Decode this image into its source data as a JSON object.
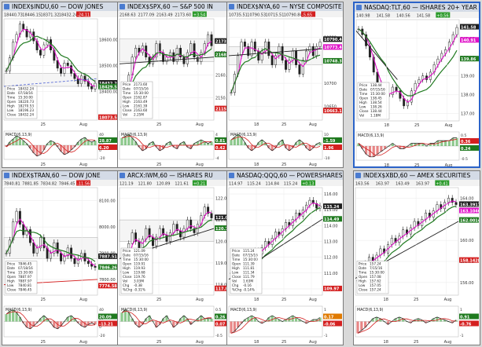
{
  "panels": [
    {
      "title": "INDEX$INDU,60 — DOW JONES",
      "readout": [
        "18440.73",
        "18446.15",
        "18371.32",
        "18432.24",
        "-24.11"
      ],
      "price_ticks": [
        "18600.00",
        "18500.00",
        "18400.00"
      ],
      "price_labels": [
        {
          "text": "18432.24",
          "color": "#1d1d1d",
          "y": 18432
        },
        {
          "text": "18429.51",
          "color": "#1f7a1f",
          "y": 18418
        },
        {
          "text": "18073.54",
          "color": "#d42020",
          "y": 18300
        }
      ],
      "ylim": [
        18290,
        18680
      ],
      "time_ticks": [
        "25",
        "Aug"
      ],
      "info_lines": [
        "Price",
        "Date",
        "Time",
        "Open",
        "High",
        "Low",
        "Close"
      ],
      "info_values": [
        "18432.24",
        "07/18/16",
        "15:30:00",
        "18220.73",
        "18270.53",
        "18196.23",
        "18432.24"
      ],
      "macd_label": "MACD(6,13,9)",
      "macd_ticks": [
        "40",
        "20",
        "0",
        "-20"
      ],
      "macd_values": [
        {
          "text": "28.87",
          "color": "#1f7a1f"
        },
        {
          "text": "6.20",
          "color": "#d42020"
        }
      ],
      "closes": [
        18480,
        18530,
        18590,
        18620,
        18660,
        18640,
        18610,
        18630,
        18595,
        18560,
        18540,
        18580,
        18600,
        18560,
        18520,
        18490,
        18470,
        18510,
        18500,
        18470,
        18450,
        18430,
        18460,
        18440,
        18420,
        18410,
        18432
      ],
      "bands": [
        {
          "a": 18420,
          "b": 18470
        }
      ],
      "trend": {
        "x0": 0.0,
        "y0": 18420,
        "x1": 1.0,
        "y1": 18450,
        "color": "#ffffff"
      },
      "macd": [
        -2,
        4,
        8,
        12,
        10,
        6,
        2,
        -4,
        -10,
        -14,
        -12,
        -6,
        2,
        6,
        4,
        -2,
        -8,
        -12,
        -10,
        -6,
        -2,
        4,
        8,
        10,
        6,
        4,
        6
      ]
    },
    {
      "title": "INDEX$SPX,60 — S&P 500 IN",
      "readout": [
        "2168.63",
        "2177.09",
        "2163.49",
        "2173.60",
        "+3.54"
      ],
      "price_ticks": [
        "2170.00",
        "2160.00",
        "2150.00"
      ],
      "price_labels": [
        {
          "text": "2173.44",
          "color": "#1d1d1d",
          "y": 2175
        },
        {
          "text": "2168.67",
          "color": "#1f7a1f",
          "y": 2169
        },
        {
          "text": "2115.67",
          "color": "#d42020",
          "y": 2145
        }
      ],
      "ylim": [
        2140,
        2185
      ],
      "time_ticks": [
        "25",
        "Aug"
      ],
      "info_lines": [
        "Price",
        "Date",
        "Time",
        "Open",
        "High",
        "Low",
        "Close",
        "Vol"
      ],
      "info_values": [
        "2173.60",
        "07/15/16",
        "15:30:00",
        "2162.87",
        "2163.49",
        "2161.39",
        "2163.60",
        "2.25M"
      ],
      "macd_label": "MACD(6,13,9)",
      "macd_ticks": [
        "4",
        "0",
        "-4"
      ],
      "macd_values": [
        {
          "text": "0.81",
          "color": "#1f7a1f"
        },
        {
          "text": "0.42",
          "color": "#d42020"
        }
      ],
      "closes": [
        2146,
        2152,
        2160,
        2168,
        2172,
        2170,
        2173,
        2168,
        2165,
        2168,
        2174,
        2170,
        2166,
        2168,
        2170,
        2166,
        2172,
        2168,
        2165,
        2170,
        2174,
        2168,
        2166,
        2170,
        2174,
        2178,
        2173
      ],
      "bands": [
        {
          "a": 2166,
          "b": 2176
        }
      ],
      "trend": {
        "x0": 0.0,
        "y0": 2165,
        "x1": 1.0,
        "y1": 2168,
        "color": "#1d1d1d"
      },
      "macd": [
        4,
        5,
        6,
        4,
        2,
        -1,
        -3,
        -2,
        1,
        2,
        -1,
        -3,
        -2,
        1,
        2,
        -1,
        -2,
        1,
        2,
        -1,
        -2,
        1,
        2,
        3,
        2,
        1,
        2
      ]
    },
    {
      "title": "INDEX$NYA,60 — NYSE COMPOSITE IN",
      "readout": [
        "10735.51",
        "10790.53",
        "10715.51",
        "10790.84",
        "-5.65"
      ],
      "price_ticks": [
        "10800",
        "10750",
        "10700",
        "10650"
      ],
      "price_labels": [
        {
          "text": "10790.408",
          "color": "#1d1d1d",
          "y": 10795
        },
        {
          "text": "10773.459",
          "color": "#e011c8",
          "y": 10778
        },
        {
          "text": "10748.324",
          "color": "#1f7a1f",
          "y": 10748
        },
        {
          "text": "10663.170",
          "color": "#d42020",
          "y": 10640
        }
      ],
      "ylim": [
        10620,
        10840
      ],
      "time_ticks": [
        "18",
        "25",
        "Aug"
      ],
      "info_lines": [],
      "info_values": [],
      "macd_label": "MACD(6,13,9)",
      "macd_ticks": [
        "10",
        "0",
        "-10"
      ],
      "macd_values": [
        {
          "text": "-1.59",
          "color": "#1f7a1f"
        },
        {
          "text": "1.96",
          "color": "#d42020"
        }
      ],
      "closes": [
        10680,
        10720,
        10760,
        10790,
        10780,
        10760,
        10790,
        10770,
        10750,
        10770,
        10790,
        10760,
        10740,
        10760,
        10780,
        10750,
        10730,
        10750,
        10770,
        10740,
        10720,
        10750,
        10770,
        10780,
        10760,
        10780,
        10790
      ],
      "bands": [
        {
          "a": 10740,
          "b": 10780
        }
      ],
      "trend": {
        "x0": 0.0,
        "y0": 10760,
        "x1": 1.0,
        "y1": 10775,
        "color": "#1d1d1d"
      },
      "macd": [
        4,
        6,
        8,
        6,
        2,
        -2,
        -4,
        -2,
        2,
        4,
        2,
        -2,
        -4,
        -2,
        2,
        4,
        -2,
        -4,
        -2,
        2,
        4,
        2,
        -2,
        -4,
        -2,
        1,
        2
      ]
    },
    {
      "title": "NASDAQ:TLT,60 — ISHARES 20+ YEAR",
      "readout": [
        "140.98",
        "141.58",
        "140.56",
        "141.58",
        "+0.56"
      ],
      "price_ticks": [
        "141.00",
        "140.00",
        "139.00",
        "138.00",
        "137.00"
      ],
      "price_labels": [
        {
          "text": "141.58",
          "color": "#1d1d1d",
          "y": 141.6
        },
        {
          "text": "140.91",
          "color": "#e011c8",
          "y": 140.9
        },
        {
          "text": "139.86",
          "color": "#1f7a1f",
          "y": 139.9
        }
      ],
      "ylim": [
        136.6,
        142.0
      ],
      "time_ticks": [
        "18",
        "25",
        "Aug"
      ],
      "info_lines": [
        "Price",
        "Date",
        "Time",
        "Open",
        "High",
        "Low",
        "Close",
        "Vol"
      ],
      "info_values": [
        "138.44",
        "07/15/16",
        "15:30:00",
        "138.45",
        "138.54",
        "138.26",
        "138.44",
        "1.18M"
      ],
      "macd_label": "MACD(6,13,9)",
      "macd_ticks": [
        "0.5",
        "0.0",
        "-0.5"
      ],
      "macd_values": [
        {
          "text": "0.36",
          "color": "#d42020"
        },
        {
          "text": "0.24",
          "color": "#1f7a1f"
        }
      ],
      "closes": [
        141.5,
        141.2,
        140.6,
        140.0,
        139.2,
        138.6,
        138.2,
        137.9,
        138.0,
        138.4,
        138.2,
        137.8,
        137.4,
        137.6,
        138.2,
        138.6,
        138.8,
        139.0,
        138.8,
        139.2,
        139.6,
        139.9,
        140.2,
        140.4,
        140.8,
        141.2,
        141.58
      ],
      "bands": [],
      "trend": {
        "x0": 0.0,
        "y0": 141.4,
        "x1": 0.4,
        "y1": 138.8,
        "color": "#1d1d1d"
      },
      "macd": [
        0.1,
        -0.1,
        -0.3,
        -0.4,
        -0.4,
        -0.3,
        -0.2,
        -0.1,
        0.0,
        0.1,
        0.0,
        -0.1,
        -0.1,
        0.0,
        0.1,
        0.1,
        0.1,
        0.1,
        0.0,
        0.1,
        0.1,
        0.2,
        0.2,
        0.2,
        0.2,
        0.3,
        0.3
      ]
    },
    {
      "title": "INDEX$TRAN,60 — DOW JONE",
      "readout": [
        "7840.81",
        "7881.85",
        "7834.82",
        "7846.45",
        "-11.56"
      ],
      "price_ticks": [
        "8100.00",
        "8000.00",
        "7900.00",
        "7800.00"
      ],
      "price_labels": [
        {
          "text": "7887.51",
          "color": "#1d1d1d",
          "y": 7887
        },
        {
          "text": "7846.26",
          "color": "#1f7a1f",
          "y": 7846
        },
        {
          "text": "7774.58",
          "color": "#d42020",
          "y": 7775
        }
      ],
      "ylim": [
        7740,
        8150
      ],
      "time_ticks": [
        "25",
        "Aug"
      ],
      "info_lines": [
        "Price",
        "Date",
        "Time",
        "Open",
        "High",
        "Low",
        "Close"
      ],
      "info_values": [
        "7846.45",
        "07/18/16",
        "15:30:00",
        "7887.97",
        "7887.97",
        "7840.81",
        "7846.45"
      ],
      "macd_label": "MACD(6,13,9)",
      "macd_ticks": [
        "40",
        "20",
        "0",
        "-20"
      ],
      "macd_values": [
        {
          "text": "20.09",
          "color": "#1f7a1f"
        },
        {
          "text": "-13.21",
          "color": "#d42020"
        }
      ],
      "closes": [
        7900,
        7950,
        8020,
        8060,
        8010,
        7970,
        7990,
        7940,
        7900,
        7920,
        7960,
        7920,
        7880,
        7900,
        7940,
        7900,
        7870,
        7890,
        7920,
        7880,
        7860,
        7880,
        7900,
        7870,
        7860,
        7850,
        7846
      ],
      "bands": [
        {
          "a": 7880,
          "b": 7960
        }
      ],
      "trend": {
        "x0": 0.0,
        "y0": 7780,
        "x1": 1.0,
        "y1": 7800,
        "color": "#d42020"
      },
      "macd": [
        10,
        14,
        16,
        12,
        6,
        -2,
        -8,
        -10,
        -6,
        -2,
        4,
        8,
        4,
        -2,
        -8,
        -10,
        -6,
        0,
        6,
        8,
        4,
        -2,
        -6,
        -8,
        -4,
        -2,
        -4
      ]
    },
    {
      "title": "ARCX:IWM,60 — ISHARES RU",
      "readout": [
        "121.19",
        "121.80",
        "120.89",
        "121.61",
        "+0.21"
      ],
      "price_ticks": [
        "122.00",
        "121.00",
        "120.00",
        "119.00",
        "118.00"
      ],
      "price_labels": [
        {
          "text": "121.09",
          "color": "#1d1d1d",
          "y": 121.1
        },
        {
          "text": "120.74",
          "color": "#1f7a1f",
          "y": 120.6
        },
        {
          "text": "117.85",
          "color": "#d42020",
          "y": 117.8
        }
      ],
      "ylim": [
        117.5,
        122.5
      ],
      "time_ticks": [
        "25",
        "Aug"
      ],
      "info_lines": [
        "Price",
        "Date",
        "Time",
        "Open",
        "High",
        "Low",
        "Close",
        "Vol",
        "Chg",
        "%Chg"
      ],
      "info_values": [
        "121.09",
        "07/15/16",
        "15:30:00",
        "119.91",
        "119.93",
        "119.68",
        "119.76",
        "3.03M",
        "-0.38",
        "-0.31%"
      ],
      "macd_label": "MACD(6,13,9)",
      "macd_ticks": [
        "0.5",
        "0.0",
        "-0.5"
      ],
      "macd_values": [
        {
          "text": "0.26",
          "color": "#1f7a1f"
        },
        {
          "text": "0.07",
          "color": "#d42020"
        }
      ],
      "closes": [
        118.6,
        119.2,
        119.9,
        120.4,
        120.0,
        119.6,
        120.1,
        120.6,
        120.2,
        119.8,
        120.2,
        120.6,
        120.3,
        120.0,
        120.4,
        120.8,
        120.5,
        120.2,
        120.6,
        121.0,
        120.6,
        120.4,
        120.8,
        121.2,
        121.6,
        121.3,
        121.09
      ],
      "bands": [
        {
          "a": 120.0,
          "b": 121.0
        }
      ],
      "trend": {
        "x0": 0.0,
        "y0": 119.2,
        "x1": 1.0,
        "y1": 120.6,
        "color": "#1d1d1d"
      },
      "macd": [
        0.3,
        0.4,
        0.3,
        0.1,
        -0.1,
        -0.2,
        -0.1,
        0.1,
        0.2,
        0.0,
        -0.2,
        -0.1,
        0.1,
        0.2,
        0.0,
        -0.2,
        -0.1,
        0.1,
        0.2,
        0.1,
        -0.1,
        0.0,
        0.1,
        0.2,
        0.1,
        0.1,
        0.1
      ]
    },
    {
      "title": "NASDAQ:QQQ,60 — POWERSHARES Q",
      "readout": [
        "114.97",
        "115.24",
        "114.84",
        "115.24",
        "+0.13"
      ],
      "price_ticks": [
        "116.00",
        "115.00",
        "114.00",
        "113.00",
        "112.00",
        "111.00",
        "110.00"
      ],
      "price_labels": [
        {
          "text": "115.24",
          "color": "#1d1d1d",
          "y": 115.2
        },
        {
          "text": "114.49",
          "color": "#1f7a1f",
          "y": 114.4
        },
        {
          "text": "109.97",
          "color": "#d42020",
          "y": 110.0
        }
      ],
      "ylim": [
        109.6,
        116.4
      ],
      "time_ticks": [
        "18",
        "25",
        "Aug"
      ],
      "info_lines": [
        "Price",
        "Date",
        "Time",
        "Open",
        "High",
        "Low",
        "Close",
        "Vol",
        "Chg",
        "%Chg"
      ],
      "info_values": [
        "115.24",
        "07/15/16",
        "15:30:00",
        "111.39",
        "111.81",
        "111.34",
        "111.79",
        "1.63M",
        "-0.16",
        "-0.14%"
      ],
      "macd_label": "MACD(6,13,9)",
      "macd_ticks": [
        "1",
        "0",
        "-1"
      ],
      "macd_values": [
        {
          "text": "0.17",
          "color": "#e07a00"
        },
        {
          "text": "-0.06",
          "color": "#d42020"
        }
      ],
      "closes": [
        111.0,
        111.3,
        111.1,
        111.5,
        111.8,
        111.6,
        112.0,
        112.4,
        112.2,
        112.6,
        113.0,
        112.8,
        113.2,
        113.6,
        113.4,
        113.8,
        114.2,
        114.0,
        114.4,
        114.8,
        114.6,
        115.0,
        115.3,
        115.6,
        115.4,
        115.1,
        115.24
      ],
      "bands": [],
      "trend": {
        "x0": 0.0,
        "y0": 110.6,
        "x1": 1.0,
        "y1": 114.4,
        "color": "#1d1d1d"
      },
      "macd": [
        -0.6,
        -0.5,
        -0.3,
        -0.1,
        0.1,
        0.2,
        0.3,
        0.2,
        0.0,
        -0.1,
        0.0,
        0.2,
        0.3,
        0.2,
        0.1,
        0.0,
        0.1,
        0.2,
        0.3,
        0.2,
        0.1,
        0.0,
        -0.1,
        0.0,
        0.1,
        0.1,
        0.2
      ]
    },
    {
      "title": "INDEX$XBD,60 — AMEX SECURITIES",
      "readout": [
        "163.56",
        "163.97",
        "163.49",
        "163.97",
        "+0.41"
      ],
      "price_ticks": [
        "164.00",
        "162.00",
        "160.00",
        "158.00",
        "156.00"
      ],
      "price_labels": [
        {
          "text": "163.3917",
          "color": "#1d1d1d",
          "y": 163.4
        },
        {
          "text": "163.1046",
          "color": "#e011c8",
          "y": 162.8
        },
        {
          "text": "162.0014",
          "color": "#1f7a1f",
          "y": 161.9
        },
        {
          "text": "158.1428",
          "color": "#d42020",
          "y": 158.1
        }
      ],
      "ylim": [
        154.8,
        165.0
      ],
      "time_ticks": [
        "18",
        "25",
        "Aug"
      ],
      "info_lines": [
        "Price",
        "Date",
        "Time",
        "Open",
        "High",
        "Low",
        "Close"
      ],
      "info_values": [
        "157.24",
        "7/15/16",
        "15:30:00",
        "157.08",
        "157.62",
        "157.05",
        "157.24"
      ],
      "macd_label": "MACD(6,13,9)",
      "macd_ticks": [
        "1",
        "0",
        "-1"
      ],
      "macd_values": [
        {
          "text": "0.91",
          "color": "#1f7a1f"
        },
        {
          "text": "-0.76",
          "color": "#d42020"
        }
      ],
      "closes": [
        156.2,
        157.0,
        157.8,
        158.4,
        158.0,
        158.6,
        159.2,
        158.8,
        159.6,
        160.2,
        159.8,
        160.4,
        161.0,
        160.6,
        161.2,
        161.8,
        161.4,
        162.0,
        162.6,
        162.2,
        162.8,
        163.4,
        163.0,
        163.6,
        164.0,
        163.6,
        163.39
      ],
      "bands": [],
      "trend": {
        "x0": 0.0,
        "y0": 156.4,
        "x1": 1.0,
        "y1": 161.8,
        "color": "#1d1d1d"
      },
      "macd": [
        -0.8,
        -0.6,
        -0.4,
        -0.1,
        0.2,
        0.3,
        0.2,
        0.0,
        -0.2,
        0.0,
        0.2,
        0.3,
        0.2,
        0.0,
        -0.1,
        0.1,
        0.2,
        0.1,
        -0.1,
        0.0,
        0.2,
        0.3,
        0.2,
        0.1,
        0.0,
        -0.1,
        0.1
      ]
    }
  ],
  "colors": {
    "price_line": "#1d1d1d",
    "ma_fast": "#e011c8",
    "ma_slow": "#1f7a1f",
    "macd_pos": "#2d9b2d",
    "macd_neg": "#d42020",
    "macd_line": "#1d1d1d",
    "macd_signal": "#d42020",
    "accent": "#2b63c8"
  }
}
